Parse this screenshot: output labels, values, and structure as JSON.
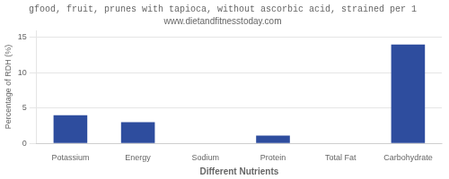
{
  "chart_data": {
    "type": "bar",
    "title": "gfood, fruit, prunes with tapioca, without ascorbic acid, strained per 1",
    "subtitle": "www.dietandfitnesstoday.com",
    "categories": [
      "Potassium",
      "Energy",
      "Sodium",
      "Protein",
      "Total Fat",
      "Carbohydrate"
    ],
    "values": [
      4.0,
      3.0,
      0.0,
      1.1,
      0.0,
      14.0
    ],
    "color": "#2e4d9e",
    "xlabel": "Different Nutrients",
    "ylabel": "Percentage of RDH (%)",
    "ylim": [
      0,
      16
    ],
    "yticks": [
      0,
      5,
      10,
      15
    ],
    "grid": true
  }
}
